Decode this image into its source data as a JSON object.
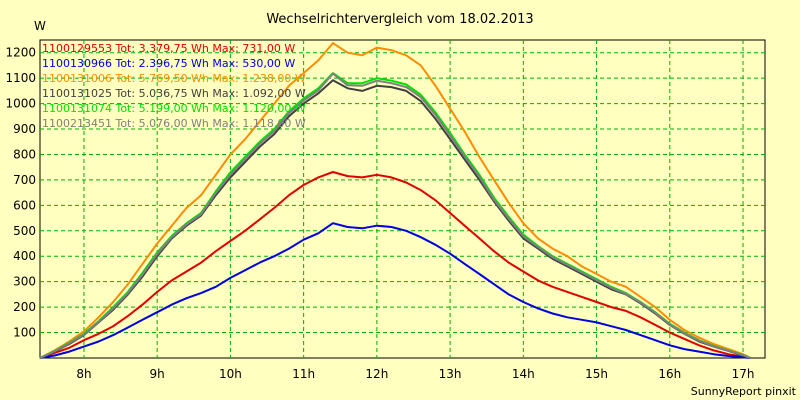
{
  "chart_data": {
    "type": "line",
    "title": "Wechselrichtervergleich vom 18.02.2013",
    "ylabel": "W",
    "footer": "SunnyReport pinxit",
    "ylim": [
      0,
      1250
    ],
    "yticks": [
      100,
      200,
      300,
      400,
      500,
      600,
      700,
      800,
      900,
      1000,
      1100,
      1200
    ],
    "xlim": [
      7.4,
      17.3
    ],
    "xticks": [
      8,
      9,
      10,
      11,
      12,
      13,
      14,
      15,
      16,
      17
    ],
    "xtick_labels": [
      "8h",
      "9h",
      "10h",
      "11h",
      "12h",
      "13h",
      "14h",
      "15h",
      "16h",
      "17h"
    ],
    "x": [
      7.4,
      7.6,
      7.8,
      8.0,
      8.2,
      8.4,
      8.6,
      8.8,
      9.0,
      9.2,
      9.4,
      9.6,
      9.8,
      10.0,
      10.2,
      10.4,
      10.6,
      10.8,
      11.0,
      11.2,
      11.4,
      11.6,
      11.8,
      12.0,
      12.2,
      12.4,
      12.6,
      12.8,
      13.0,
      13.2,
      13.4,
      13.6,
      13.8,
      14.0,
      14.2,
      14.4,
      14.6,
      14.8,
      15.0,
      15.2,
      15.4,
      15.6,
      15.8,
      16.0,
      16.2,
      16.4,
      16.6,
      16.8,
      17.0,
      17.1
    ],
    "series": [
      {
        "name": "1100129553",
        "legend": "1100129553 Tot: 3.379,75 Wh Max: 731,00 W",
        "color": "#e00000",
        "values": [
          0,
          20,
          40,
          70,
          95,
          125,
          165,
          210,
          260,
          305,
          340,
          375,
          420,
          460,
          500,
          545,
          590,
          640,
          680,
          710,
          731,
          715,
          710,
          720,
          710,
          690,
          660,
          620,
          570,
          520,
          470,
          420,
          375,
          340,
          305,
          280,
          260,
          240,
          220,
          200,
          185,
          160,
          130,
          100,
          75,
          50,
          30,
          15,
          5,
          0
        ]
      },
      {
        "name": "1100130966",
        "legend": "1100130966 Tot: 2.396,75 Wh Max: 530,00 W",
        "color": "#0000e0",
        "values": [
          0,
          10,
          25,
          45,
          65,
          90,
          120,
          150,
          180,
          210,
          235,
          255,
          280,
          315,
          345,
          375,
          400,
          430,
          465,
          490,
          530,
          515,
          510,
          520,
          515,
          500,
          475,
          445,
          410,
          370,
          330,
          290,
          250,
          220,
          195,
          175,
          160,
          150,
          140,
          125,
          110,
          90,
          70,
          50,
          35,
          25,
          15,
          8,
          3,
          0
        ]
      },
      {
        "name": "1100131006",
        "legend": "1100131006 Tot: 5.769,50 Wh Max: 1.238,00 W",
        "color": "#ff8c00",
        "values": [
          0,
          30,
          65,
          105,
          160,
          220,
          290,
          370,
          450,
          520,
          590,
          640,
          720,
          800,
          860,
          930,
          1000,
          1070,
          1120,
          1170,
          1238,
          1200,
          1190,
          1220,
          1210,
          1190,
          1150,
          1070,
          980,
          890,
          790,
          700,
          610,
          530,
          470,
          430,
          400,
          360,
          330,
          300,
          280,
          240,
          200,
          150,
          110,
          80,
          55,
          35,
          15,
          0
        ]
      },
      {
        "name": "1100131025",
        "legend": "1100131025 Tot: 5.036,75 Wh Max: 1.092,00 W",
        "color": "#404040",
        "values": [
          0,
          25,
          55,
          90,
          140,
          190,
          250,
          320,
          400,
          470,
          520,
          560,
          640,
          710,
          770,
          830,
          880,
          950,
          1000,
          1040,
          1092,
          1060,
          1050,
          1070,
          1065,
          1050,
          1010,
          940,
          860,
          780,
          700,
          615,
          540,
          470,
          430,
          390,
          360,
          330,
          300,
          270,
          250,
          215,
          175,
          130,
          95,
          65,
          45,
          28,
          10,
          0
        ]
      },
      {
        "name": "1100131074",
        "legend": "1100131074 Tot: 5.199,00 Wh Max: 1.120,00 W",
        "color": "#00e000",
        "values": [
          0,
          28,
          60,
          95,
          145,
          200,
          260,
          335,
          415,
          480,
          530,
          570,
          655,
          730,
          790,
          850,
          900,
          970,
          1020,
          1060,
          1120,
          1080,
          1080,
          1100,
          1090,
          1075,
          1035,
          965,
          885,
          800,
          720,
          630,
          555,
          485,
          440,
          400,
          370,
          340,
          310,
          280,
          255,
          220,
          180,
          135,
          100,
          70,
          48,
          30,
          12,
          0
        ]
      },
      {
        "name": "1100213451",
        "legend": "1100213451 Tot: 5.076,00 Wh Max: 1.118,00 W",
        "color": "#808080",
        "values": [
          0,
          26,
          58,
          92,
          142,
          195,
          255,
          328,
          408,
          475,
          525,
          565,
          648,
          720,
          782,
          842,
          892,
          962,
          1012,
          1052,
          1118,
          1072,
          1070,
          1090,
          1080,
          1065,
          1025,
          955,
          875,
          792,
          712,
          622,
          548,
          478,
          436,
          396,
          366,
          336,
          306,
          276,
          252,
          218,
          178,
          132,
          97,
          68,
          46,
          29,
          11,
          0
        ]
      }
    ]
  }
}
